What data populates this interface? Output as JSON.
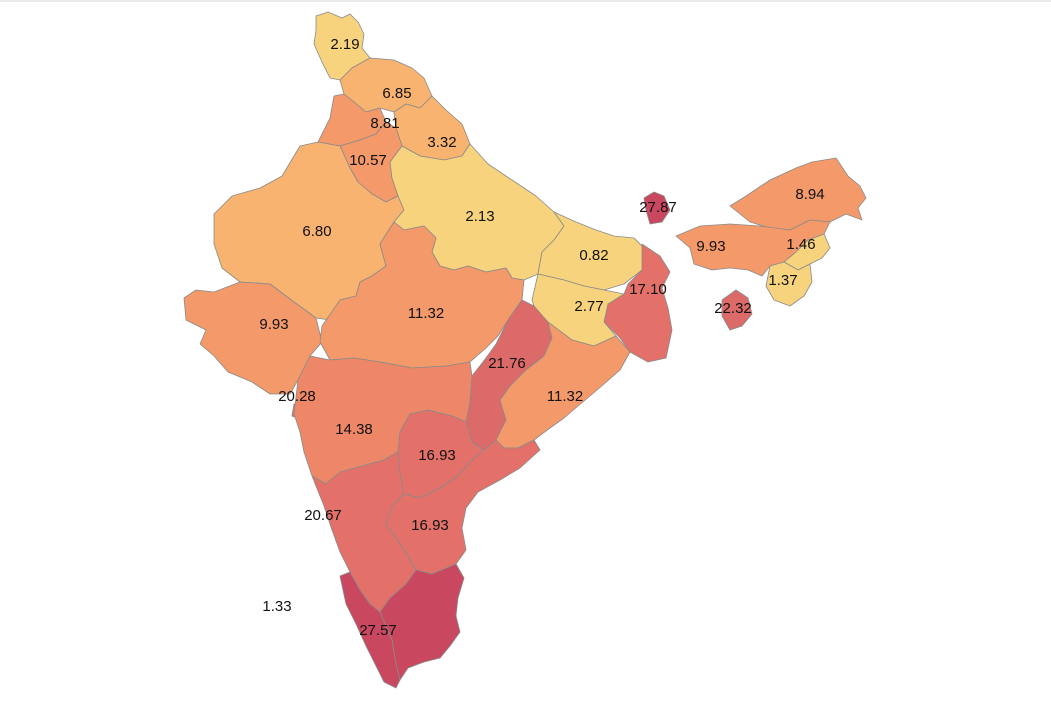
{
  "chart_data": {
    "type": "choropleth",
    "title": "",
    "color_scale": [
      "#f7d37e",
      "#f7b36f",
      "#f4996a",
      "#ed8768",
      "#e3716a",
      "#dc6a69",
      "#c9485f"
    ],
    "regions": [
      {
        "key": "jammu-kashmir",
        "value": 2.19
      },
      {
        "key": "himachal-pradesh",
        "value": 6.85
      },
      {
        "key": "punjab",
        "value": 8.81
      },
      {
        "key": "uttarakhand",
        "value": 3.32
      },
      {
        "key": "haryana",
        "value": 10.57
      },
      {
        "key": "rajasthan",
        "value": 6.8
      },
      {
        "key": "uttar-pradesh",
        "value": 2.13
      },
      {
        "key": "sikkim",
        "value": 27.87
      },
      {
        "key": "arunachal-pradesh",
        "value": 8.94
      },
      {
        "key": "assam",
        "value": 9.93
      },
      {
        "key": "nagaland",
        "value": 1.46
      },
      {
        "key": "bihar",
        "value": 0.82
      },
      {
        "key": "west-bengal",
        "value": 17.1
      },
      {
        "key": "manipur",
        "value": 1.37
      },
      {
        "key": "jharkhand",
        "value": 2.77
      },
      {
        "key": "tripura",
        "value": 22.32
      },
      {
        "key": "gujarat",
        "value": 9.93
      },
      {
        "key": "madhya-pradesh",
        "value": 11.32
      },
      {
        "key": "chhattisgarh",
        "value": 21.76
      },
      {
        "key": "odisha",
        "value": 11.32
      },
      {
        "key": "goa",
        "value": 20.28
      },
      {
        "key": "maharashtra",
        "value": 14.38
      },
      {
        "key": "telangana",
        "value": 16.93
      },
      {
        "key": "karnataka",
        "value": 20.67
      },
      {
        "key": "andhra-pradesh",
        "value": 16.93
      },
      {
        "key": "lakshadweep",
        "value": 1.33
      },
      {
        "key": "tamil-nadu",
        "value": 27.57
      },
      {
        "key": "kerala",
        "value": 27.57
      }
    ],
    "labels": [
      {
        "region": "jammu-kashmir",
        "text": "2.19"
      },
      {
        "region": "himachal-pradesh",
        "text": "6.85"
      },
      {
        "region": "punjab",
        "text": "8.81"
      },
      {
        "region": "uttarakhand",
        "text": "3.32"
      },
      {
        "region": "haryana",
        "text": "10.57"
      },
      {
        "region": "rajasthan",
        "text": "6.80"
      },
      {
        "region": "uttar-pradesh",
        "text": "2.13"
      },
      {
        "region": "sikkim",
        "text": "27.87"
      },
      {
        "region": "arunachal-pradesh",
        "text": "8.94"
      },
      {
        "region": "assam",
        "text": "9.93"
      },
      {
        "region": "nagaland",
        "text": "1.46"
      },
      {
        "region": "bihar",
        "text": "0.82"
      },
      {
        "region": "west-bengal",
        "text": "17.10"
      },
      {
        "region": "manipur",
        "text": "1.37"
      },
      {
        "region": "jharkhand",
        "text": "2.77"
      },
      {
        "region": "tripura",
        "text": "22.32"
      },
      {
        "region": "gujarat",
        "text": "9.93"
      },
      {
        "region": "madhya-pradesh",
        "text": "11.32"
      },
      {
        "region": "chhattisgarh",
        "text": "21.76"
      },
      {
        "region": "odisha",
        "text": "11.32"
      },
      {
        "region": "goa",
        "text": "20.28"
      },
      {
        "region": "maharashtra",
        "text": "14.38"
      },
      {
        "region": "telangana",
        "text": "16.93"
      },
      {
        "region": "karnataka",
        "text": "20.67"
      },
      {
        "region": "andhra-pradesh",
        "text": "16.93"
      },
      {
        "region": "lakshadweep",
        "text": "1.33"
      },
      {
        "region": "tamil-nadu",
        "text": "27.57"
      }
    ]
  }
}
